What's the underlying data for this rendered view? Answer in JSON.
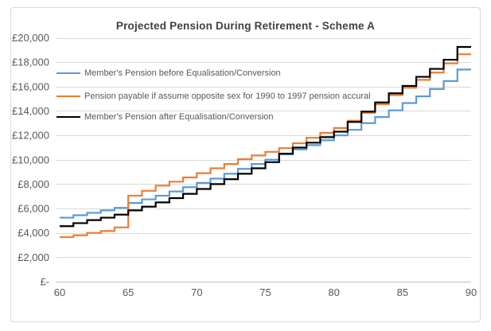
{
  "chart_data": {
    "type": "line",
    "line_style": "step",
    "title": "Projected Pension During Retirement - Scheme A",
    "grid": "horizontal",
    "legend_position": "inside-top-left",
    "x_axis": {
      "min": 60,
      "max": 90,
      "tick_values": [
        60,
        65,
        70,
        75,
        80,
        85,
        90
      ],
      "tick_labels": [
        "60",
        "65",
        "70",
        "75",
        "80",
        "85",
        "90"
      ]
    },
    "y_axis": {
      "min": 0,
      "max": 20000,
      "tick_step": 2000,
      "tick_values": [
        0,
        2000,
        4000,
        6000,
        8000,
        10000,
        12000,
        14000,
        16000,
        18000,
        20000
      ],
      "tick_labels": [
        "£-",
        "£2,000",
        "£4,000",
        "£6,000",
        "£8,000",
        "£10,000",
        "£12,000",
        "£14,000",
        "£16,000",
        "£18,000",
        "£20,000"
      ]
    },
    "ages": [
      60,
      61,
      62,
      63,
      64,
      65,
      66,
      67,
      68,
      69,
      70,
      71,
      72,
      73,
      74,
      75,
      76,
      77,
      78,
      79,
      80,
      81,
      82,
      83,
      84,
      85,
      86,
      87,
      88,
      89
    ],
    "series": [
      {
        "name": "Member's Pension before Equalisation/Conversion",
        "color": "#5B9BD5",
        "values": [
          5250,
          5450,
          5650,
          5850,
          6050,
          6450,
          6750,
          7050,
          7400,
          7750,
          8100,
          8450,
          8850,
          9250,
          9650,
          10000,
          10450,
          10850,
          11200,
          11600,
          12000,
          12450,
          13000,
          13500,
          14050,
          14650,
          15200,
          15800,
          16450,
          17400
        ]
      },
      {
        "name": "Pension payable if assume opposite sex for 1990 to 1997 pension accural",
        "color": "#ED7D31",
        "values": [
          3650,
          3800,
          4000,
          4150,
          4450,
          7050,
          7450,
          7875,
          8200,
          8550,
          8900,
          9300,
          9650,
          10050,
          10350,
          10650,
          10950,
          11350,
          11800,
          12200,
          12600,
          13200,
          13850,
          14550,
          15300,
          15900,
          16550,
          17150,
          17900,
          18650
        ]
      },
      {
        "name": "Member's Pension after Equalisation/Conversion",
        "color": "#000000",
        "values": [
          4550,
          4800,
          5050,
          5250,
          5500,
          5850,
          6150,
          6500,
          6850,
          7200,
          7600,
          8000,
          8400,
          8850,
          9300,
          9800,
          10500,
          11000,
          11400,
          11850,
          12300,
          13100,
          13950,
          14700,
          15450,
          16050,
          16800,
          17450,
          18200,
          19250
        ]
      }
    ]
  },
  "colors": {
    "background": "#FFFFFF",
    "frame_border": "#D9D9D9",
    "gridline": "#D9D9D9",
    "axis_line": "#BFBFBF",
    "tick_text": "#595959",
    "title_text": "#404040"
  }
}
